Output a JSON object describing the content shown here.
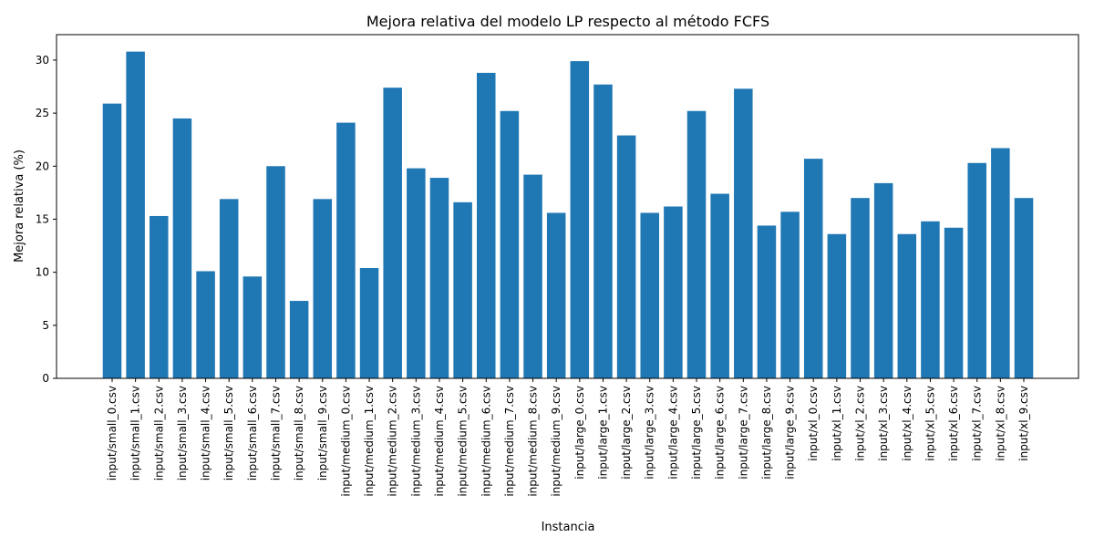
{
  "chart_data": {
    "type": "bar",
    "title": "Mejora relativa del modelo LP respecto al método FCFS",
    "xlabel": "Instancia",
    "ylabel": "Mejora relativa (%)",
    "ylim": [
      0,
      32.4
    ],
    "yticks": [
      0,
      5,
      10,
      15,
      20,
      25,
      30
    ],
    "grid": false,
    "bar_color": "#1f77b4",
    "categories": [
      "input/small_0.csv",
      "input/small_1.csv",
      "input/small_2.csv",
      "input/small_3.csv",
      "input/small_4.csv",
      "input/small_5.csv",
      "input/small_6.csv",
      "input/small_7.csv",
      "input/small_8.csv",
      "input/small_9.csv",
      "input/medium_0.csv",
      "input/medium_1.csv",
      "input/medium_2.csv",
      "input/medium_3.csv",
      "input/medium_4.csv",
      "input/medium_5.csv",
      "input/medium_6.csv",
      "input/medium_7.csv",
      "input/medium_8.csv",
      "input/medium_9.csv",
      "input/large_0.csv",
      "input/large_1.csv",
      "input/large_2.csv",
      "input/large_3.csv",
      "input/large_4.csv",
      "input/large_5.csv",
      "input/large_6.csv",
      "input/large_7.csv",
      "input/large_8.csv",
      "input/large_9.csv",
      "input/xl_0.csv",
      "input/xl_1.csv",
      "input/xl_2.csv",
      "input/xl_3.csv",
      "input/xl_4.csv",
      "input/xl_5.csv",
      "input/xl_6.csv",
      "input/xl_7.csv",
      "input/xl_8.csv",
      "input/xl_9.csv"
    ],
    "values": [
      25.9,
      30.8,
      15.3,
      24.5,
      10.1,
      16.9,
      9.6,
      20.0,
      7.3,
      16.9,
      24.1,
      10.4,
      27.4,
      19.8,
      18.9,
      16.6,
      28.8,
      25.2,
      19.2,
      15.6,
      29.9,
      27.7,
      22.9,
      15.6,
      16.2,
      25.2,
      17.4,
      27.3,
      14.4,
      15.7,
      20.7,
      13.6,
      17.0,
      18.4,
      13.6,
      14.8,
      14.2,
      20.3,
      21.7,
      17.0
    ]
  }
}
